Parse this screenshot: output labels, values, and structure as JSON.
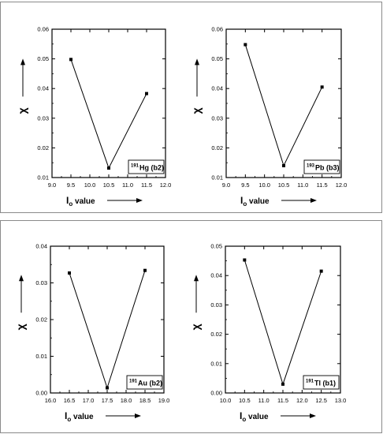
{
  "chart_data": [
    {
      "type": "line",
      "label_nucleus": "Hg (b2)",
      "label_mass": "191",
      "x": [
        9.5,
        10.5,
        11.5
      ],
      "y": [
        0.0498,
        0.0132,
        0.0383
      ],
      "xlim": [
        9.0,
        12.0
      ],
      "ylim": [
        0.01,
        0.06
      ],
      "xticks": [
        "9.0",
        "9.5",
        "10.0",
        "10.5",
        "11.0",
        "11.5",
        "12.0"
      ],
      "yticks": [
        "0.01",
        "0.02",
        "0.03",
        "0.04",
        "0.05",
        "0.06"
      ],
      "ylabel": "χ",
      "xlabel_main": "I",
      "xlabel_sub": "o",
      "xlabel_rest": " value"
    },
    {
      "type": "line",
      "label_nucleus": "Pb (b3)",
      "label_mass": "193",
      "x": [
        9.5,
        10.5,
        11.5
      ],
      "y": [
        0.0548,
        0.014,
        0.0405
      ],
      "xlim": [
        9.0,
        12.0
      ],
      "ylim": [
        0.01,
        0.06
      ],
      "xticks": [
        "9.0",
        "9.5",
        "10.0",
        "10.5",
        "11.0",
        "11.5",
        "12.0"
      ],
      "yticks": [
        "0.01",
        "0.02",
        "0.03",
        "0.04",
        "0.05",
        "0.06"
      ],
      "ylabel": "χ",
      "xlabel_main": "I",
      "xlabel_sub": "o",
      "xlabel_rest": " value"
    },
    {
      "type": "line",
      "label_nucleus": "Au (b2)",
      "label_mass": "191",
      "x": [
        16.5,
        17.5,
        18.5
      ],
      "y": [
        0.0327,
        0.0014,
        0.0334
      ],
      "xlim": [
        16.0,
        19.0
      ],
      "ylim": [
        0.0,
        0.04
      ],
      "xticks": [
        "16.0",
        "16.5",
        "17.0",
        "17.5",
        "18.0",
        "18.5",
        "19.0"
      ],
      "yticks": [
        "0.00",
        "0.01",
        "0.02",
        "0.03",
        "0.04"
      ],
      "ylabel": "χ",
      "xlabel_main": "I",
      "xlabel_sub": "o",
      "xlabel_rest": " value"
    },
    {
      "type": "line",
      "label_nucleus": "Tl (b1)",
      "label_mass": "191",
      "x": [
        10.5,
        11.5,
        12.5
      ],
      "y": [
        0.0453,
        0.003,
        0.0415
      ],
      "xlim": [
        10.0,
        13.0
      ],
      "ylim": [
        0.0,
        0.05
      ],
      "xticks": [
        "10.0",
        "10.5",
        "11.0",
        "11.5",
        "12.0",
        "12.5",
        "13.0"
      ],
      "yticks": [
        "0.00",
        "0.01",
        "0.02",
        "0.03",
        "0.04",
        "0.05"
      ],
      "ylabel": "χ",
      "xlabel_main": "I",
      "xlabel_sub": "o",
      "xlabel_rest": " value"
    }
  ]
}
